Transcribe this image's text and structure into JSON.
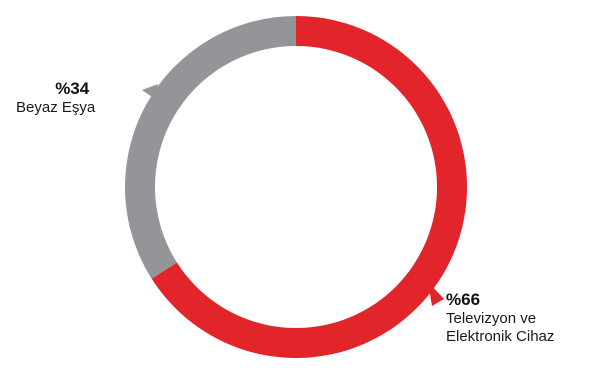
{
  "chart_data": {
    "type": "pie",
    "style": "donut",
    "slices": [
      {
        "percent_label": "%66",
        "name_lines": [
          "Televizyon ve",
          "Elektronik Cihaz"
        ],
        "value": 66,
        "color": "#e2242b"
      },
      {
        "percent_label": "%34",
        "name_lines": [
          "Beyaz Eşya"
        ],
        "value": 34,
        "color": "#939598"
      }
    ],
    "legend": "none"
  }
}
